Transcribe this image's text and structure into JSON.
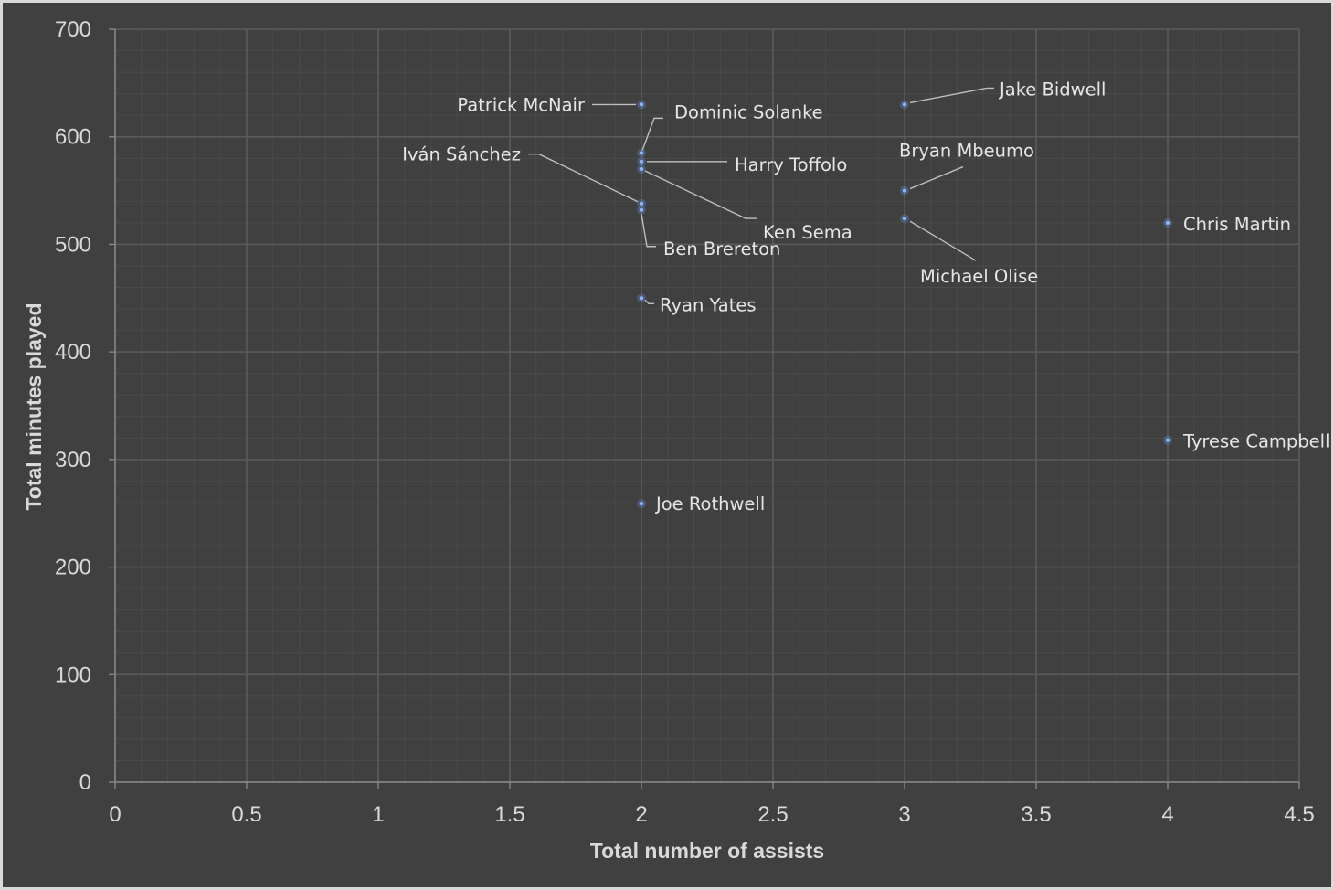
{
  "chart_data": {
    "type": "scatter",
    "title": "",
    "xlabel": "Total number of assists",
    "ylabel": "Total minutes played",
    "xlim": [
      0,
      4.5
    ],
    "ylim": [
      0,
      700
    ],
    "x_ticks": [
      "0",
      "0.5",
      "1",
      "1.5",
      "2",
      "2.5",
      "3",
      "3.5",
      "4",
      "4.5"
    ],
    "y_ticks": [
      "0",
      "100",
      "200",
      "300",
      "400",
      "500",
      "600",
      "700"
    ],
    "grid": true,
    "legend": "none",
    "colors": {
      "background": "#404040",
      "major_grid": "#5c5c5c",
      "minor_grid": "#4a4a4a",
      "marker": "#8fb4ee",
      "text": "#d9d9d9"
    },
    "points": [
      {
        "label": "Patrick McNair",
        "x": 2,
        "y": 630
      },
      {
        "label": "Dominic Solanke",
        "x": 2,
        "y": 585
      },
      {
        "label": "Harry Toffolo",
        "x": 2,
        "y": 577
      },
      {
        "label": "Iván Sánchez",
        "x": 2,
        "y": 538
      },
      {
        "label": "Ken Sema",
        "x": 2,
        "y": 570
      },
      {
        "label": "Ben Brereton",
        "x": 2,
        "y": 532
      },
      {
        "label": "Ryan Yates",
        "x": 2,
        "y": 450
      },
      {
        "label": "Joe Rothwell",
        "x": 2,
        "y": 259
      },
      {
        "label": "Jake Bidwell",
        "x": 3,
        "y": 630
      },
      {
        "label": "Bryan Mbeumo",
        "x": 3,
        "y": 550
      },
      {
        "label": "Michael Olise",
        "x": 3,
        "y": 524
      },
      {
        "label": "Chris Martin",
        "x": 4,
        "y": 520
      },
      {
        "label": "Tyrese Campbell",
        "x": 4,
        "y": 318
      }
    ]
  }
}
